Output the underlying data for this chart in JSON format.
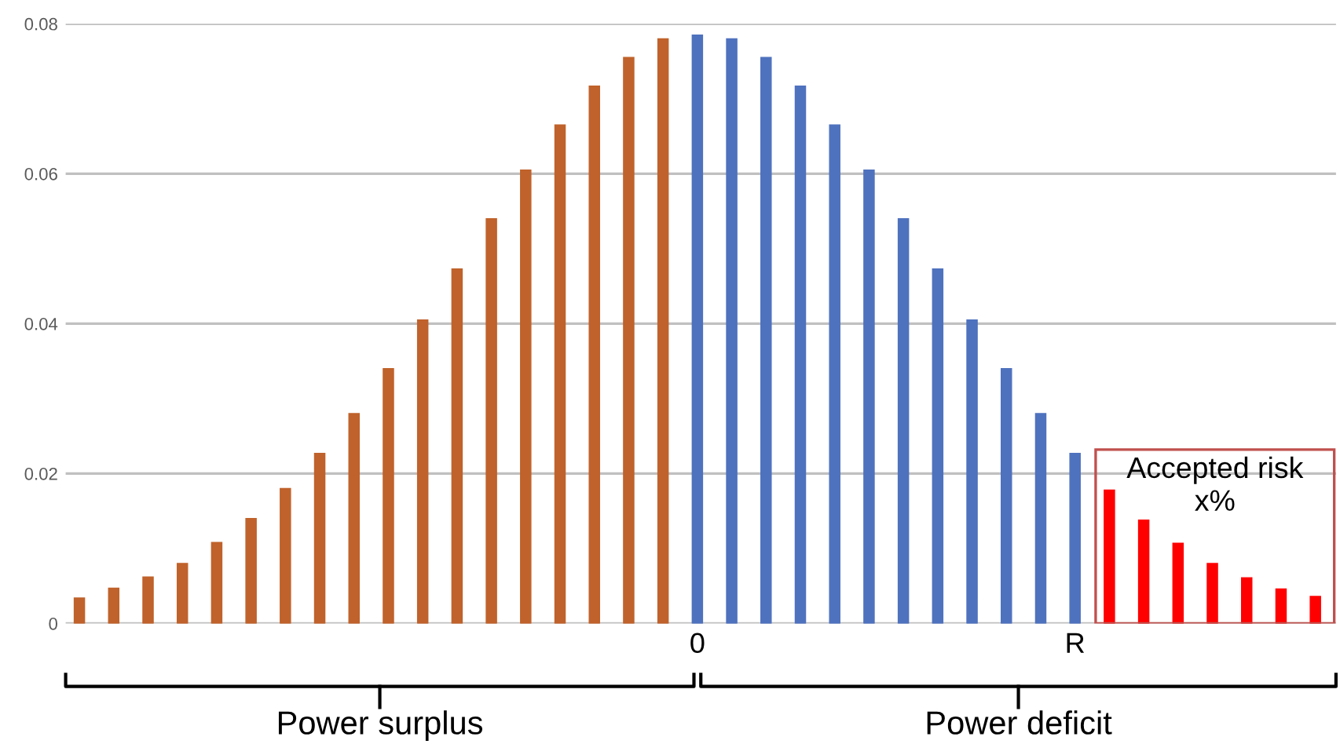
{
  "chart_data": {
    "type": "bar",
    "categories": [
      null,
      null,
      null,
      null,
      null,
      null,
      null,
      null,
      null,
      null,
      null,
      null,
      null,
      null,
      null,
      null,
      null,
      null,
      "0",
      null,
      null,
      null,
      null,
      null,
      null,
      null,
      null,
      null,
      null,
      "R",
      null,
      null,
      null,
      null,
      null,
      null,
      null
    ],
    "values": [
      0.0034,
      0.0047,
      0.0062,
      0.008,
      0.0108,
      0.014,
      0.018,
      0.0227,
      0.028,
      0.034,
      0.0405,
      0.0473,
      0.054,
      0.0605,
      0.0665,
      0.0717,
      0.0755,
      0.078,
      0.0785,
      0.078,
      0.0755,
      0.0717,
      0.0665,
      0.0605,
      0.054,
      0.0473,
      0.0405,
      0.034,
      0.028,
      0.0227,
      0.0178,
      0.0138,
      0.0107,
      0.008,
      0.0061,
      0.0046,
      0.0036
    ],
    "colors": [
      "#c0622b",
      "#c0622b",
      "#c0622b",
      "#c0622b",
      "#c0622b",
      "#c0622b",
      "#c0622b",
      "#c0622b",
      "#c0622b",
      "#c0622b",
      "#c0622b",
      "#c0622b",
      "#c0622b",
      "#c0622b",
      "#c0622b",
      "#c0622b",
      "#c0622b",
      "#c0622b",
      "#4f72be",
      "#4f72be",
      "#4f72be",
      "#4f72be",
      "#4f72be",
      "#4f72be",
      "#4f72be",
      "#4f72be",
      "#4f72be",
      "#4f72be",
      "#4f72be",
      "#4f72be",
      "#ff0000",
      "#ff0000",
      "#ff0000",
      "#ff0000",
      "#ff0000",
      "#ff0000",
      "#ff0000"
    ],
    "ylim": [
      0,
      0.08
    ],
    "yticks": [
      0,
      0.02,
      0.04,
      0.06,
      0.08
    ],
    "grid": "y",
    "annotations": [
      "Power surplus",
      "Power deficit",
      "Accepted risk\nx%"
    ]
  }
}
